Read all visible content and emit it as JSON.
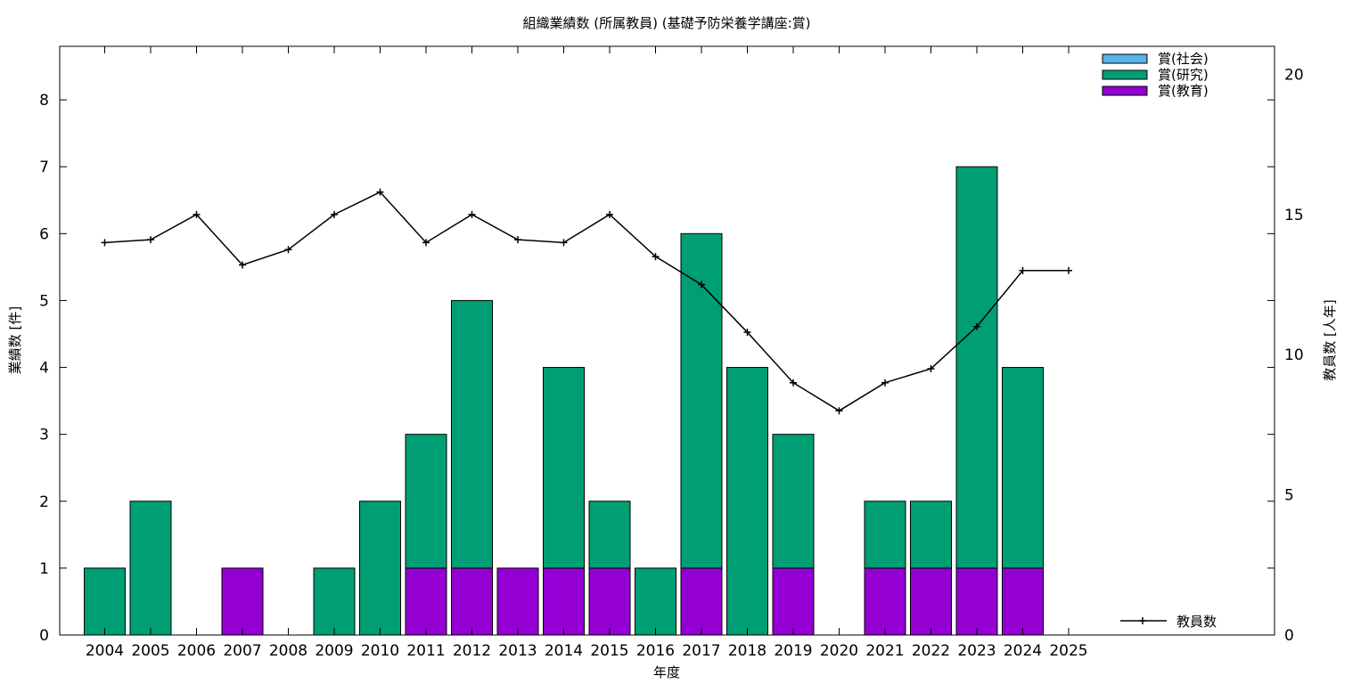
{
  "chart_data": {
    "type": "bar",
    "stacked": true,
    "title": "組織業績数 (所属教員) (基礎予防栄養学講座:賞)",
    "xlabel": "年度",
    "ylabel": "業績数 [件]",
    "y2label": "教員数 [人年]",
    "categories": [
      "2004",
      "2005",
      "2006",
      "2007",
      "2008",
      "2009",
      "2010",
      "2011",
      "2012",
      "2013",
      "2014",
      "2015",
      "2016",
      "2017",
      "2018",
      "2019",
      "2020",
      "2021",
      "2022",
      "2023",
      "2024",
      "2025"
    ],
    "ylim": [
      0,
      8.8
    ],
    "y2lim": [
      0,
      21
    ],
    "yticks": [
      "0",
      "1",
      "2",
      "3",
      "4",
      "5",
      "6",
      "7",
      "8"
    ],
    "y2ticks": [
      "0",
      "5",
      "10",
      "15",
      "20"
    ],
    "grid": false,
    "legend_placement": "top-right",
    "series": [
      {
        "name": "賞(社会)",
        "color": "#56b4e9",
        "values": [
          0,
          0,
          0,
          0,
          0,
          0,
          0,
          0,
          0,
          0,
          0,
          0,
          0,
          0,
          0,
          0,
          0,
          0,
          0,
          0,
          0,
          0
        ]
      },
      {
        "name": "賞(研究)",
        "color": "#009e73",
        "values": [
          1,
          2,
          0,
          0,
          0,
          1,
          2,
          2,
          4,
          0,
          3,
          1,
          1,
          5,
          4,
          2,
          0,
          1,
          1,
          6,
          3,
          0
        ]
      },
      {
        "name": "賞(教育)",
        "color": "#9400d3",
        "values": [
          0,
          0,
          0,
          1,
          0,
          0,
          0,
          1,
          1,
          1,
          1,
          1,
          0,
          1,
          0,
          1,
          0,
          1,
          1,
          1,
          1,
          0
        ]
      }
    ],
    "line_series": {
      "name": "教員数",
      "axis": "y2",
      "color": "#000000",
      "values": [
        14,
        14.1,
        15,
        13.2,
        13.75,
        15,
        15.8,
        14,
        15,
        14.1,
        14,
        15,
        13.5,
        12.5,
        10.8,
        9,
        8,
        9,
        9.5,
        11,
        13,
        13
      ]
    }
  }
}
